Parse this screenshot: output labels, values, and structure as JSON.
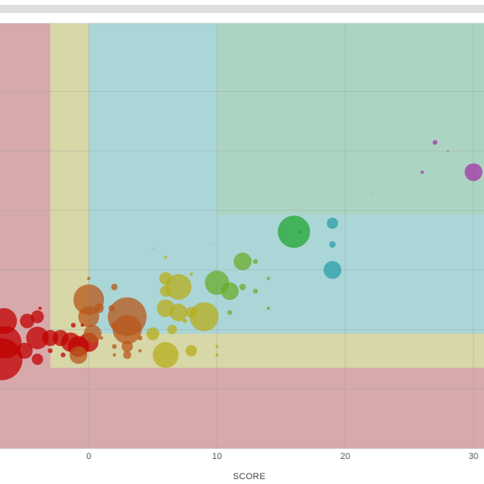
{
  "chart_data": {
    "type": "scatter",
    "title": "",
    "xlabel": "SCORE",
    "ylabel": "",
    "xlim": [
      -7,
      31
    ],
    "ylim": [
      0,
      100
    ],
    "x_ticks": [
      0,
      10,
      20,
      30
    ],
    "y_gridlines": [
      0,
      14,
      28,
      42,
      56,
      70,
      84,
      100
    ],
    "grid": true,
    "legend": "none",
    "zones": [
      {
        "name": "red",
        "x0": -7,
        "x1": 31,
        "y0": 0,
        "y1": 100,
        "color": "#d8a9ab"
      },
      {
        "name": "yellow",
        "x0": -3,
        "x1": 31,
        "y0": 19,
        "y1": 100,
        "color": "#d7d7a8"
      },
      {
        "name": "blue",
        "x0": 0,
        "x1": 31,
        "y0": 27,
        "y1": 100,
        "color": "#abd6d8"
      },
      {
        "name": "green",
        "x0": 10,
        "x1": 31,
        "y0": 55,
        "y1": 100,
        "color": "#abd5c2"
      }
    ],
    "points": [
      {
        "x": -6.8,
        "y": 21,
        "size": 26,
        "color": "#c00000"
      },
      {
        "x": -6.6,
        "y": 30,
        "size": 16,
        "color": "#c00000"
      },
      {
        "x": -6.5,
        "y": 25,
        "size": 20,
        "color": "#c00000"
      },
      {
        "x": -4.8,
        "y": 30,
        "size": 9,
        "color": "#c00000"
      },
      {
        "x": -4.0,
        "y": 31,
        "size": 8,
        "color": "#c00000"
      },
      {
        "x": -4.0,
        "y": 26,
        "size": 14,
        "color": "#c00000"
      },
      {
        "x": -3.0,
        "y": 26,
        "size": 10,
        "color": "#c00000"
      },
      {
        "x": -4.0,
        "y": 21,
        "size": 7,
        "color": "#c00000"
      },
      {
        "x": -5.0,
        "y": 23,
        "size": 10,
        "color": "#c00000"
      },
      {
        "x": -3.8,
        "y": 33,
        "size": 2,
        "color": "#c00000"
      },
      {
        "x": -2.2,
        "y": 26,
        "size": 10,
        "color": "#c00000"
      },
      {
        "x": -1.4,
        "y": 25,
        "size": 12,
        "color": "#c00000"
      },
      {
        "x": -0.8,
        "y": 24,
        "size": 13,
        "color": "#c00000"
      },
      {
        "x": 0.0,
        "y": 25,
        "size": 12,
        "color": "#c00000"
      },
      {
        "x": -2.0,
        "y": 22,
        "size": 3,
        "color": "#c00000"
      },
      {
        "x": -1.2,
        "y": 29,
        "size": 3,
        "color": "#c00000"
      },
      {
        "x": -3.0,
        "y": 23,
        "size": 3,
        "color": "#c00000"
      },
      {
        "x": -0.5,
        "y": 29,
        "size": 2,
        "color": "#c00000"
      },
      {
        "x": 0.0,
        "y": 35,
        "size": 19,
        "color": "#b8571b"
      },
      {
        "x": 0.0,
        "y": 31,
        "size": 13,
        "color": "#b8571b"
      },
      {
        "x": 0.3,
        "y": 27,
        "size": 11,
        "color": "#b8571b"
      },
      {
        "x": -0.8,
        "y": 22,
        "size": 11,
        "color": "#b8571b"
      },
      {
        "x": 0.8,
        "y": 33,
        "size": 6,
        "color": "#b8571b"
      },
      {
        "x": 2.0,
        "y": 38,
        "size": 4,
        "color": "#b8571b"
      },
      {
        "x": 1.8,
        "y": 33,
        "size": 4,
        "color": "#b8571b"
      },
      {
        "x": 2.0,
        "y": 29,
        "size": 4,
        "color": "#b8571b"
      },
      {
        "x": 3.0,
        "y": 31,
        "size": 24,
        "color": "#b8571b"
      },
      {
        "x": 3.0,
        "y": 28,
        "size": 18,
        "color": "#b8571b"
      },
      {
        "x": 3.0,
        "y": 24,
        "size": 7,
        "color": "#b8571b"
      },
      {
        "x": 3.0,
        "y": 22,
        "size": 5,
        "color": "#b8571b"
      },
      {
        "x": 2.0,
        "y": 24,
        "size": 3,
        "color": "#b8571b"
      },
      {
        "x": 2.0,
        "y": 22,
        "size": 2,
        "color": "#b8571b"
      },
      {
        "x": 4.0,
        "y": 23,
        "size": 2,
        "color": "#b8571b"
      },
      {
        "x": 4.0,
        "y": 26,
        "size": 3,
        "color": "#b8571b"
      },
      {
        "x": 1.0,
        "y": 26,
        "size": 2,
        "color": "#b8571b"
      },
      {
        "x": 0.0,
        "y": 40,
        "size": 2,
        "color": "#b8571b"
      },
      {
        "x": 6.0,
        "y": 40,
        "size": 8,
        "color": "#b7ad1c"
      },
      {
        "x": 7.0,
        "y": 38,
        "size": 16,
        "color": "#b7ad1c"
      },
      {
        "x": 6.0,
        "y": 33,
        "size": 11,
        "color": "#b7ad1c"
      },
      {
        "x": 7.0,
        "y": 32,
        "size": 11,
        "color": "#b7ad1c"
      },
      {
        "x": 6.5,
        "y": 28,
        "size": 6,
        "color": "#b7ad1c"
      },
      {
        "x": 5.0,
        "y": 27,
        "size": 8,
        "color": "#b7ad1c"
      },
      {
        "x": 6.0,
        "y": 22,
        "size": 16,
        "color": "#b7ad1c"
      },
      {
        "x": 8.0,
        "y": 23,
        "size": 7,
        "color": "#b7ad1c"
      },
      {
        "x": 9.0,
        "y": 31,
        "size": 18,
        "color": "#b7ad1c"
      },
      {
        "x": 8.0,
        "y": 32,
        "size": 7,
        "color": "#b7ad1c"
      },
      {
        "x": 6.0,
        "y": 37,
        "size": 7,
        "color": "#b7ad1c"
      },
      {
        "x": 10.0,
        "y": 22,
        "size": 2,
        "color": "#b7ad1c"
      },
      {
        "x": 10.0,
        "y": 24,
        "size": 2,
        "color": "#b7ad1c"
      },
      {
        "x": 7.5,
        "y": 30,
        "size": 3,
        "color": "#b7ad1c"
      },
      {
        "x": 6.0,
        "y": 45,
        "size": 2,
        "color": "#b7ad1c"
      },
      {
        "x": 8.0,
        "y": 41,
        "size": 2,
        "color": "#b7ad1c"
      },
      {
        "x": 10.0,
        "y": 39,
        "size": 15,
        "color": "#6aac2a"
      },
      {
        "x": 11.0,
        "y": 37,
        "size": 11,
        "color": "#6aac2a"
      },
      {
        "x": 12.0,
        "y": 44,
        "size": 11,
        "color": "#6aac2a"
      },
      {
        "x": 12.0,
        "y": 38,
        "size": 4,
        "color": "#6aac2a"
      },
      {
        "x": 11.0,
        "y": 32,
        "size": 3,
        "color": "#6aac2a"
      },
      {
        "x": 13.0,
        "y": 44,
        "size": 3,
        "color": "#6aac2a"
      },
      {
        "x": 13.0,
        "y": 37,
        "size": 3,
        "color": "#6aac2a"
      },
      {
        "x": 14.0,
        "y": 40,
        "size": 2,
        "color": "#6aac2a"
      },
      {
        "x": 14.0,
        "y": 33,
        "size": 2,
        "color": "#6aac2a"
      },
      {
        "x": 16.0,
        "y": 51,
        "size": 20,
        "color": "#22a432"
      },
      {
        "x": 16.5,
        "y": 51,
        "size": 2,
        "color": "#22a432"
      },
      {
        "x": 19.0,
        "y": 53,
        "size": 7,
        "color": "#2a9ea8"
      },
      {
        "x": 19.0,
        "y": 48,
        "size": 4,
        "color": "#2a9ea8"
      },
      {
        "x": 19.0,
        "y": 42,
        "size": 11,
        "color": "#2a9ea8"
      },
      {
        "x": 27.0,
        "y": 72,
        "size": 3,
        "color": "#a633a6"
      },
      {
        "x": 26.0,
        "y": 65,
        "size": 2,
        "color": "#a633a6"
      },
      {
        "x": 30.0,
        "y": 65,
        "size": 11,
        "color": "#a633a6"
      },
      {
        "x": 28.0,
        "y": 70,
        "size": 1,
        "color": "#a633a6"
      },
      {
        "x": 22.0,
        "y": 60,
        "size": 1,
        "color": "#8fb8a0"
      },
      {
        "x": 9.5,
        "y": 48,
        "size": 1,
        "color": "#9bb0b0"
      },
      {
        "x": 5.0,
        "y": 47,
        "size": 1,
        "color": "#9bb0b0"
      }
    ]
  }
}
